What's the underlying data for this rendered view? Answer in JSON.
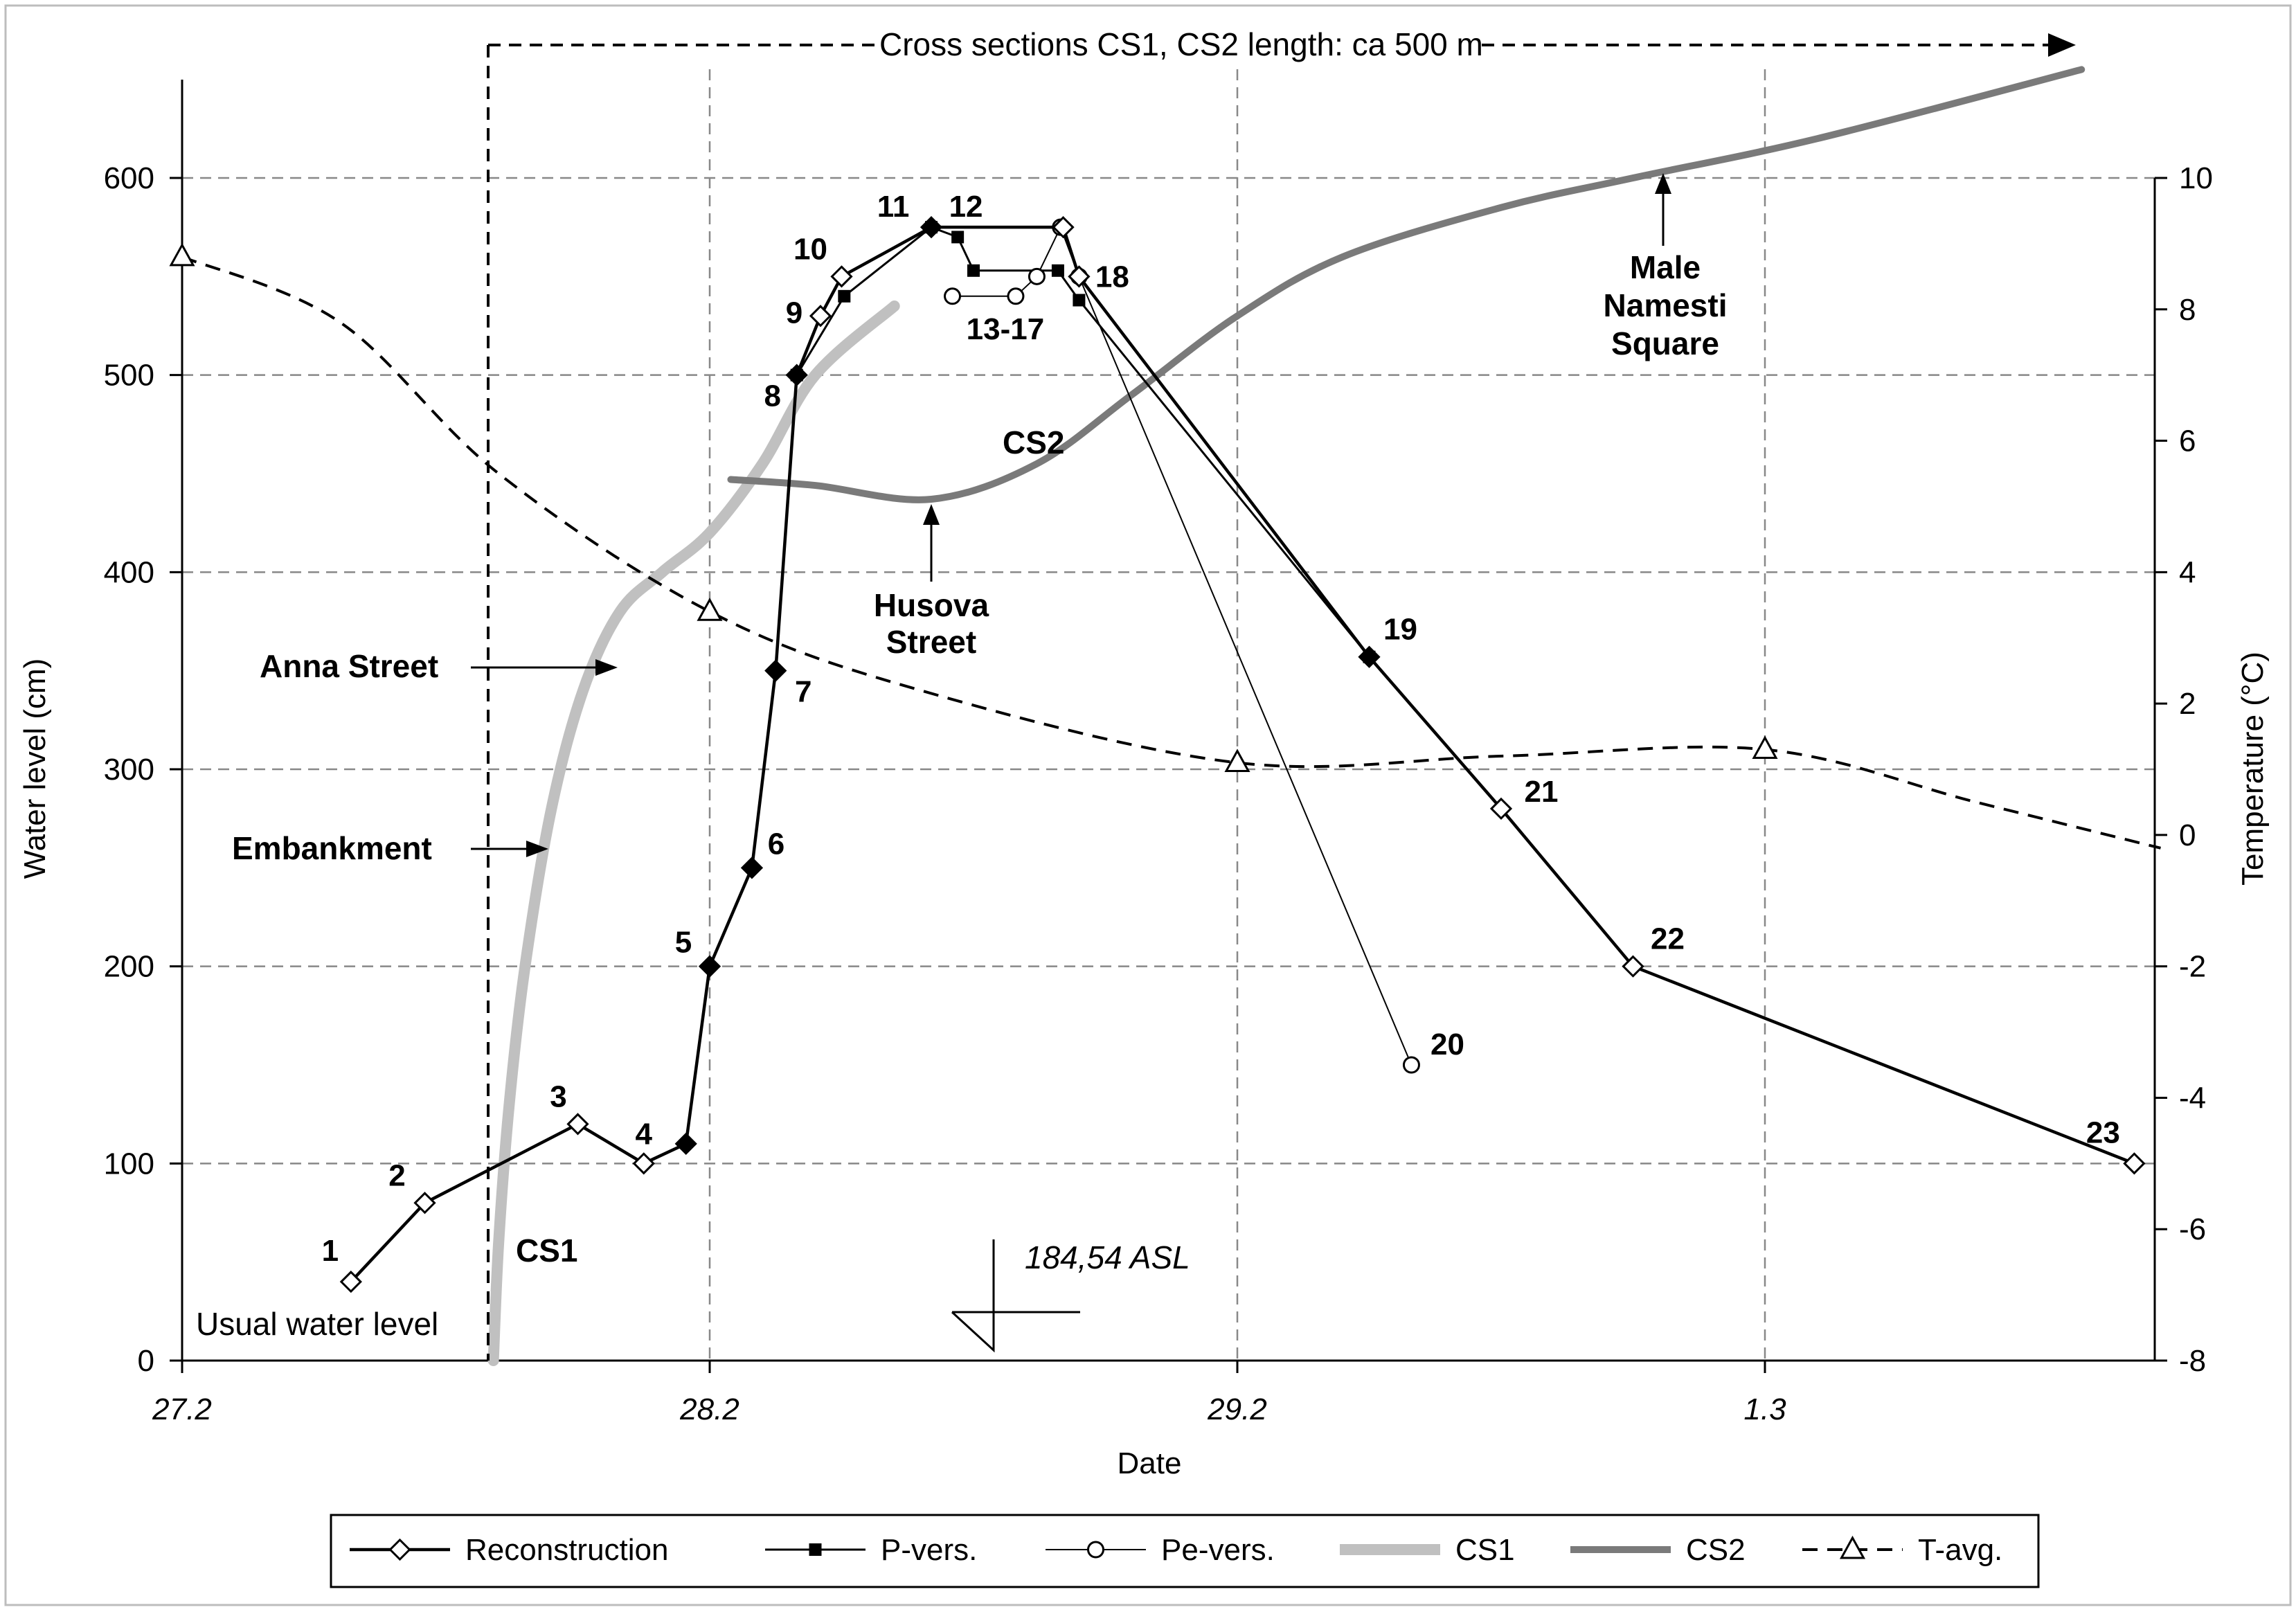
{
  "chart_data": {
    "type": "line",
    "xlabel": "Date",
    "ylabel_left": "Water level (cm)",
    "ylabel_right": "Temperature (°C)",
    "x_ticks": [
      {
        "x": 0,
        "label": "27.2"
      },
      {
        "x": 1,
        "label": "28.2"
      },
      {
        "x": 2,
        "label": "29.2"
      },
      {
        "x": 3,
        "label": "1.3"
      }
    ],
    "xlim": [
      0,
      3.75
    ],
    "ylim_left": [
      0,
      600
    ],
    "yticks_left": [
      0,
      100,
      200,
      300,
      400,
      500,
      600
    ],
    "ylim_right": [
      -8,
      10
    ],
    "yticks_right": [
      -8,
      -6,
      -4,
      -2,
      0,
      2,
      4,
      6,
      8,
      10
    ],
    "grid": true,
    "legend_position": "bottom",
    "series": [
      {
        "name": "Reconstruction",
        "axis": "left",
        "color": "#000000",
        "points": [
          {
            "x": 0.32,
            "y": 40,
            "label": "1",
            "marker": "diamond-open"
          },
          {
            "x": 0.46,
            "y": 80,
            "label": "2",
            "marker": "diamond-open"
          },
          {
            "x": 0.75,
            "y": 120,
            "label": "3",
            "marker": "diamond-open"
          },
          {
            "x": 0.875,
            "y": 100,
            "label": "4",
            "marker": "diamond-open"
          },
          {
            "x": 0.955,
            "y": 110,
            "label": "",
            "marker": "diamond-filled"
          },
          {
            "x": 1.0,
            "y": 200,
            "label": "5",
            "marker": "diamond-filled"
          },
          {
            "x": 1.08,
            "y": 250,
            "label": "6",
            "marker": "diamond-filled"
          },
          {
            "x": 1.125,
            "y": 350,
            "label": "7",
            "marker": "diamond-filled"
          },
          {
            "x": 1.165,
            "y": 500,
            "label": "8",
            "marker": "diamond-filled"
          },
          {
            "x": 1.21,
            "y": 530,
            "label": "9",
            "marker": "diamond-open"
          },
          {
            "x": 1.25,
            "y": 550,
            "label": "10",
            "marker": "diamond-open"
          },
          {
            "x": 1.42,
            "y": 575,
            "label": "11",
            "marker": "diamond-filled"
          },
          {
            "x": 1.67,
            "y": 575,
            "label": "",
            "marker": "diamond-open"
          },
          {
            "x": 1.7,
            "y": 550,
            "label": "18",
            "marker": "diamond-open"
          },
          {
            "x": 2.25,
            "y": 357,
            "label": "19",
            "marker": "diamond-filled"
          },
          {
            "x": 2.5,
            "y": 280,
            "label": "21",
            "marker": "diamond-open"
          },
          {
            "x": 2.75,
            "y": 200,
            "label": "22",
            "marker": "diamond-open"
          },
          {
            "x": 3.7,
            "y": 100,
            "label": "23",
            "marker": "diamond-open"
          }
        ]
      },
      {
        "name": "P-vers.",
        "axis": "left",
        "color": "#000000",
        "points": [
          {
            "x": 1.165,
            "y": 500,
            "label": ""
          },
          {
            "x": 1.255,
            "y": 540,
            "label": ""
          },
          {
            "x": 1.42,
            "y": 575,
            "label": "12"
          },
          {
            "x": 1.47,
            "y": 570,
            "label": ""
          },
          {
            "x": 1.5,
            "y": 553,
            "label": ""
          },
          {
            "x": 1.66,
            "y": 553,
            "label": ""
          },
          {
            "x": 1.7,
            "y": 538,
            "label": ""
          },
          {
            "x": 2.25,
            "y": 357,
            "label": ""
          }
        ]
      },
      {
        "name": "Pe-vers.",
        "axis": "left",
        "color": "#000000",
        "points": [
          {
            "x": 1.46,
            "y": 540,
            "label": ""
          },
          {
            "x": 1.58,
            "y": 540,
            "label": "13-17"
          },
          {
            "x": 1.62,
            "y": 550,
            "label": ""
          },
          {
            "x": 1.665,
            "y": 575,
            "label": ""
          },
          {
            "x": 1.7,
            "y": 550,
            "label": ""
          },
          {
            "x": 2.33,
            "y": 150,
            "label": "20"
          }
        ]
      },
      {
        "name": "CS1",
        "axis": "left",
        "color": "#c0c0c0",
        "points": [
          {
            "x": 0.59,
            "y": 0
          },
          {
            "x": 0.6,
            "y": 60
          },
          {
            "x": 0.62,
            "y": 130
          },
          {
            "x": 0.65,
            "y": 200
          },
          {
            "x": 0.7,
            "y": 280
          },
          {
            "x": 0.76,
            "y": 340
          },
          {
            "x": 0.83,
            "y": 380
          },
          {
            "x": 0.91,
            "y": 400
          },
          {
            "x": 1.0,
            "y": 420
          },
          {
            "x": 1.1,
            "y": 455
          },
          {
            "x": 1.2,
            "y": 500
          },
          {
            "x": 1.35,
            "y": 535
          }
        ]
      },
      {
        "name": "CS2",
        "axis": "left",
        "color": "#7a7a7a",
        "points": [
          {
            "x": 1.04,
            "y": 447
          },
          {
            "x": 1.2,
            "y": 444
          },
          {
            "x": 1.42,
            "y": 437
          },
          {
            "x": 1.62,
            "y": 455
          },
          {
            "x": 1.8,
            "y": 490
          },
          {
            "x": 2.0,
            "y": 530
          },
          {
            "x": 2.2,
            "y": 560
          },
          {
            "x": 2.5,
            "y": 585
          },
          {
            "x": 2.75,
            "y": 600
          },
          {
            "x": 3.1,
            "y": 620
          },
          {
            "x": 3.6,
            "y": 655
          }
        ]
      },
      {
        "name": "T-avg.",
        "axis": "right",
        "color": "#000000",
        "points": [
          {
            "x": 0,
            "y": 8.8,
            "marker": "triangle"
          },
          {
            "x": 0.3,
            "y": 7.8
          },
          {
            "x": 0.6,
            "y": 5.5
          },
          {
            "x": 1.0,
            "y": 3.4,
            "marker": "triangle"
          },
          {
            "x": 1.4,
            "y": 2.2
          },
          {
            "x": 2.0,
            "y": 1.1,
            "marker": "triangle"
          },
          {
            "x": 2.5,
            "y": 1.2
          },
          {
            "x": 3.0,
            "y": 1.3,
            "marker": "triangle"
          },
          {
            "x": 3.4,
            "y": 0.5
          },
          {
            "x": 3.75,
            "y": -0.2
          }
        ]
      }
    ],
    "annotations": {
      "top_arrow": "Cross sections CS1, CS2 length: ca 500 m",
      "anna_street": "Anna Street",
      "embankment": "Embankment",
      "husova_street": [
        "Husova",
        "Street"
      ],
      "male_namesti": [
        "Male",
        "Namesti",
        "Square"
      ],
      "cs1_label": "CS1",
      "cs2_label": "CS2",
      "usual_water_level": "Usual water level",
      "asl_label": "184,54 ASL"
    },
    "legend": [
      {
        "name": "Reconstruction",
        "style": "line-diamond-open"
      },
      {
        "name": "P-vers.",
        "style": "line-square-filled"
      },
      {
        "name": "Pe-vers.",
        "style": "line-circle-open"
      },
      {
        "name": "CS1",
        "style": "thick-light-gray"
      },
      {
        "name": "CS2",
        "style": "thick-dark-gray"
      },
      {
        "name": "T-avg.",
        "style": "dashed-triangle"
      }
    ]
  }
}
